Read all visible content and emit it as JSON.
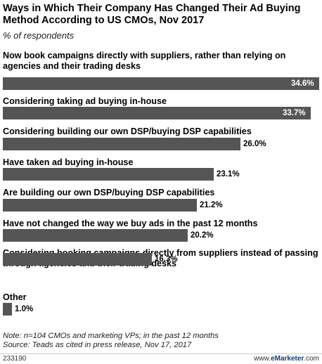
{
  "title": "Ways in Which Their Company Has Changed Their Ad Buying Method According to US CMOs, Nov 2017",
  "subtitle": "% of respondents",
  "note_line1": "Note: n=104 CMOs and marketing VPs; in the past 12 months",
  "note_line2": "Source: Teads as cited in press release, Nov 17, 2017",
  "footer_id": "233190",
  "footer_site_prefix": "www.",
  "footer_site_brand": "eMarketer",
  "footer_site_suffix": ".com",
  "colors": {
    "bar": "#555555",
    "title": "#000000"
  },
  "chart_data": {
    "type": "bar",
    "orientation": "horizontal",
    "title": "Ways in Which Their Company Has Changed Their Ad Buying Method According to US CMOs, Nov 2017",
    "subtitle": "% of respondents",
    "categories": [
      "Now book campaigns directly with suppliers, rather than relying on agencies and their trading desks",
      "Considering taking ad buying in-house",
      "Considering building our own DSP/buying DSP capabilities",
      "Have taken ad buying in-house",
      "Are building our own DSP/buying DSP capabilities",
      "Have not changed the way we buy ads in the past 12 months",
      "Considering booking campaigns directly from suppliers instead of passing through agencies and their trading desks",
      "Other"
    ],
    "values": [
      34.6,
      33.7,
      26.0,
      23.1,
      21.2,
      20.2,
      16.3,
      1.0
    ],
    "value_labels": [
      "34.6%",
      "33.7%",
      "26.0%",
      "23.1%",
      "21.2%",
      "20.2%",
      "16.3%",
      "1.0%"
    ],
    "xlim": [
      0,
      34.6
    ],
    "grid": false,
    "legend": "none"
  }
}
